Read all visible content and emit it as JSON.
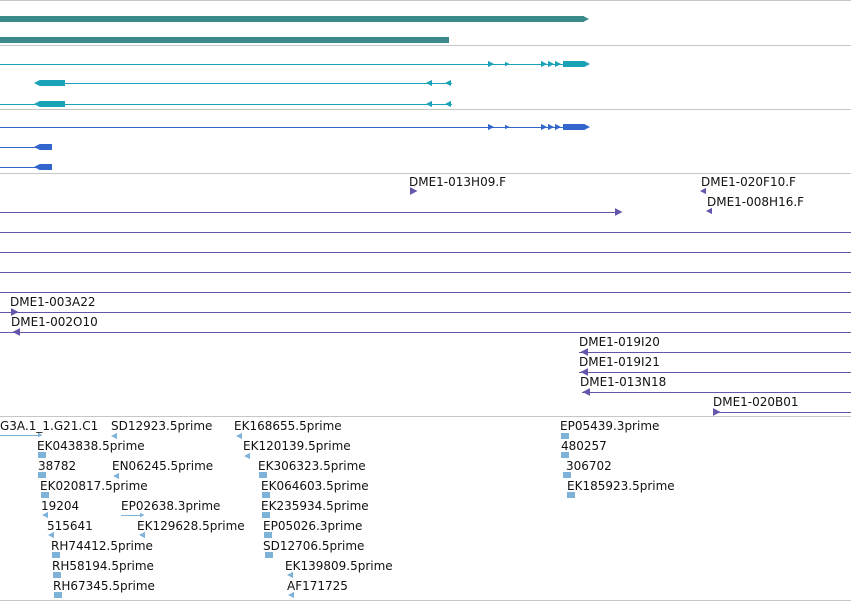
{
  "colors": {
    "background": "#ffffff",
    "track_divider": "#c6c6c6",
    "gene_span": "#3a8a8a",
    "transcript_cyan": "#1aa3b8",
    "transcript_blue": "#3366cc",
    "clone_purple": "#6655aa",
    "est_lightblue": "#7fb2d9",
    "label_text": "#111111"
  },
  "icons": {
    "forward_arrow": "forward-arrow-icon",
    "reverse_arrow": "reverse-arrow-icon"
  },
  "clone_labels": [
    "DME1-013H09.F",
    "DME1-020F10.F",
    "DME1-008H16.F",
    "DME1-003A22",
    "DME1-002O10",
    "DME1-019I20",
    "DME1-019I21",
    "DME1-013N18",
    "DME1-020B01"
  ],
  "est_labels": [
    "G3A.1_1.G21.C1",
    "SD12923.5prime",
    "EK168655.5prime",
    "EK043838.5prime",
    "EK120139.5prime",
    "38782",
    "EN06245.5prime",
    "EK306323.5prime",
    "EK020817.5prime",
    "EK064603.5prime",
    "19204",
    "EP02638.3prime",
    "EK235934.5prime",
    "515641",
    "EK129628.5prime",
    "EP05026.3prime",
    "RH74412.5prime",
    "SD12706.5prime",
    "RH58194.5prime",
    "EK139809.5prime",
    "RH67345.5prime",
    "AF171725",
    "EP05439.3prime",
    "480257",
    "306702",
    "EK185923.5prime"
  ]
}
